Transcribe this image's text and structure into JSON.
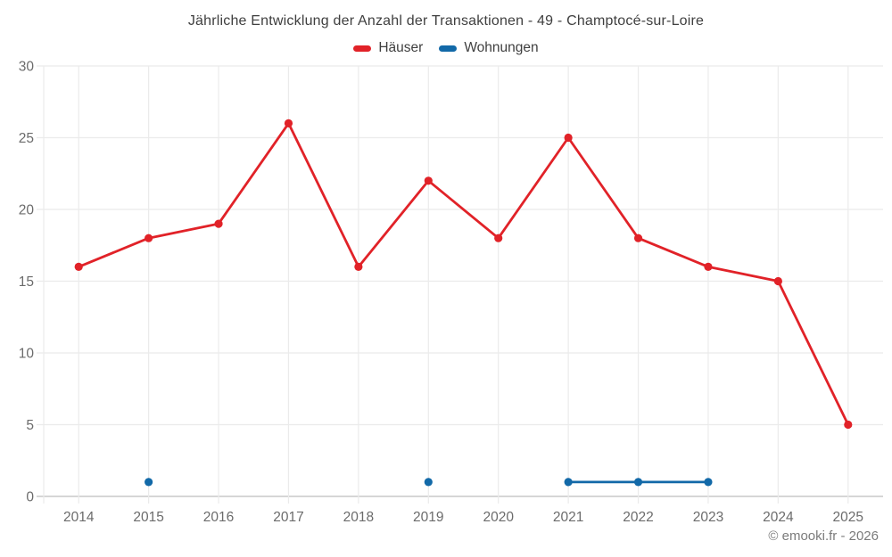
{
  "footer": {
    "copyright": "© emooki.fr - 2026"
  },
  "colors": {
    "haeuser": "#e12228",
    "wohnungen": "#1269a8",
    "grid": "#ebebeb",
    "axis": "#c8c8c8",
    "tick_text": "#6b6b6b",
    "title_text": "#3f3f3f"
  },
  "chart_data": {
    "type": "line",
    "title": "Jährliche Entwicklung der Anzahl der Transaktionen - 49 - Champtocé-sur-Loire",
    "categories": [
      "2014",
      "2015",
      "2016",
      "2017",
      "2018",
      "2019",
      "2020",
      "2021",
      "2022",
      "2023",
      "2024",
      "2025"
    ],
    "series": [
      {
        "name": "Häuser",
        "color": "#e12228",
        "values": [
          16,
          18,
          19,
          26,
          16,
          22,
          18,
          25,
          18,
          16,
          15,
          5
        ]
      },
      {
        "name": "Wohnungen",
        "color": "#1269a8",
        "values": [
          null,
          1,
          null,
          null,
          null,
          1,
          null,
          1,
          1,
          1,
          null,
          null
        ]
      }
    ],
    "xlabel": "",
    "ylabel": "",
    "ylim": [
      0,
      30
    ],
    "yticks": [
      0,
      5,
      10,
      15,
      20,
      25,
      30
    ],
    "grid": true,
    "legend_position": "top"
  }
}
